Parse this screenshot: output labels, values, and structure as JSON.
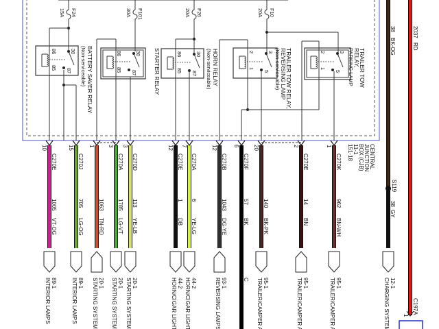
{
  "fuses": [
    {
      "id": "F24",
      "rating": "15A"
    },
    {
      "id": "F101",
      "rating": "30A"
    },
    {
      "id": "F26",
      "rating": "20A"
    },
    {
      "id": "F10",
      "rating": "20A"
    }
  ],
  "relays": [
    {
      "name": "BATTERY SAVER RELAY",
      "note": "(Non-serviceable)",
      "pins": [
        "86",
        "85",
        "30",
        "87"
      ]
    },
    {
      "name": "STARTER RELAY",
      "note": "",
      "pins": [
        "86",
        "85",
        "30",
        "87"
      ]
    },
    {
      "name": "HORN RELAY",
      "note": "(Non-serviceable)",
      "pins": [
        "86",
        "85",
        "30",
        "87"
      ]
    },
    {
      "name": "TRAILER TOW RELAY,",
      "name2": "REVERSING LAMP",
      "note": "(Non-service able)",
      "pins": [
        "2",
        "1",
        "3",
        "5"
      ]
    },
    {
      "name": "TRAILER TOW",
      "name2": "RELAY,",
      "note": "PARKING LAMP",
      "pins": [
        "2",
        "1",
        "3",
        "5"
      ]
    }
  ],
  "cjb": {
    "lines": [
      "CENTRAL",
      "JUNCTION",
      "BOX (CJB)",
      "11-1",
      "151-18"
    ]
  },
  "wires": [
    {
      "connector": "C270E",
      "pin": "10",
      "circuit": "1005",
      "color_code": "VT-OG",
      "color": "#d0208f",
      "target": "89-1",
      "target_label": "INTERIOR LAMPS",
      "shape": "down"
    },
    {
      "connector": "C270J",
      "pin": "15",
      "circuit": "705",
      "color_code": "LG-OG",
      "color": "#6aa832",
      "target": "89-1",
      "target_label": "INTERIOR LAMPS",
      "shape": "down"
    },
    {
      "connector": "",
      "pin": "1",
      "circuit": "1063",
      "color_code": "TN-RD",
      "color": "#c8502a",
      "target": "20-1",
      "target_label": "STARTING SYSTEM",
      "shape": "up"
    },
    {
      "connector": "C270A",
      "pin": "3",
      "circuit": "1785",
      "color_code": "LG-VT",
      "color": "#4caa3c",
      "target": "20-1",
      "target_label": "STARTING SYSTEM",
      "shape": "down"
    },
    {
      "connector": "C270D",
      "pin": "3",
      "circuit": "113",
      "color_code": "YE-LB",
      "color": "#d8e070",
      "target": "20-1",
      "target_label": "STARTING SYSTEM",
      "shape": "down"
    },
    {
      "connector": "C270E",
      "pin": "12",
      "circuit": "1",
      "color_code": "DB",
      "color": "#111111",
      "target": "44-2",
      "target_label": "HORN/CIGAR LIGHT",
      "shape": "down"
    },
    {
      "connector": "C270A",
      "pin": "7",
      "circuit": "6",
      "color_code": "YE-LG",
      "color": "#d8f040",
      "target": "44-2",
      "target_label": "HORN/CIGAR LIGHT",
      "shape": "down"
    },
    {
      "connector": "C270B",
      "pin": "12",
      "circuit": "1043",
      "color_code": "DG-YE",
      "color": "#2e2e2e",
      "target": "93-1",
      "target_label": "REVERSING LAMPS",
      "shape": "up"
    },
    {
      "connector": "C270F",
      "pin": "6",
      "circuit": "57",
      "color_code": "BK",
      "color": "#000000",
      "target": "",
      "target_label": "C",
      "shape": "none"
    },
    {
      "connector": "",
      "pin": "20",
      "circuit": "140",
      "color_code": "BK-PK",
      "color": "#4a2222",
      "target": "95-1",
      "target_label": "TRAILER/CAMPER A",
      "shape": "down"
    },
    {
      "connector": "C270E",
      "pin": "2",
      "circuit": "14",
      "color_code": "BN",
      "color": "#3a1010",
      "target": "95-1",
      "target_label": "TRAILER/CAMPER A",
      "shape": "up"
    },
    {
      "connector": "C270K",
      "pin": "1",
      "circuit": "962",
      "color_code": "BN-WH",
      "color": "#6a3030",
      "target": "95-1",
      "target_label": "TRAILER/CAMPER A",
      "shape": "down"
    }
  ],
  "charging_wire": {
    "upper_circuit": "38",
    "upper_color_code": "BK-OG",
    "splice": "S119",
    "circuit": "38",
    "color_code": "GY",
    "color": "#111111",
    "target": "12-1",
    "target_label": "CHARGING SYSTEM"
  },
  "power_wire": {
    "circuit": "2037",
    "color_code": "RD",
    "color": "#e01818",
    "connector": "C197A",
    "pin": "1"
  },
  "colors": {
    "box_border": "#6a6acc",
    "line": "#333333"
  }
}
